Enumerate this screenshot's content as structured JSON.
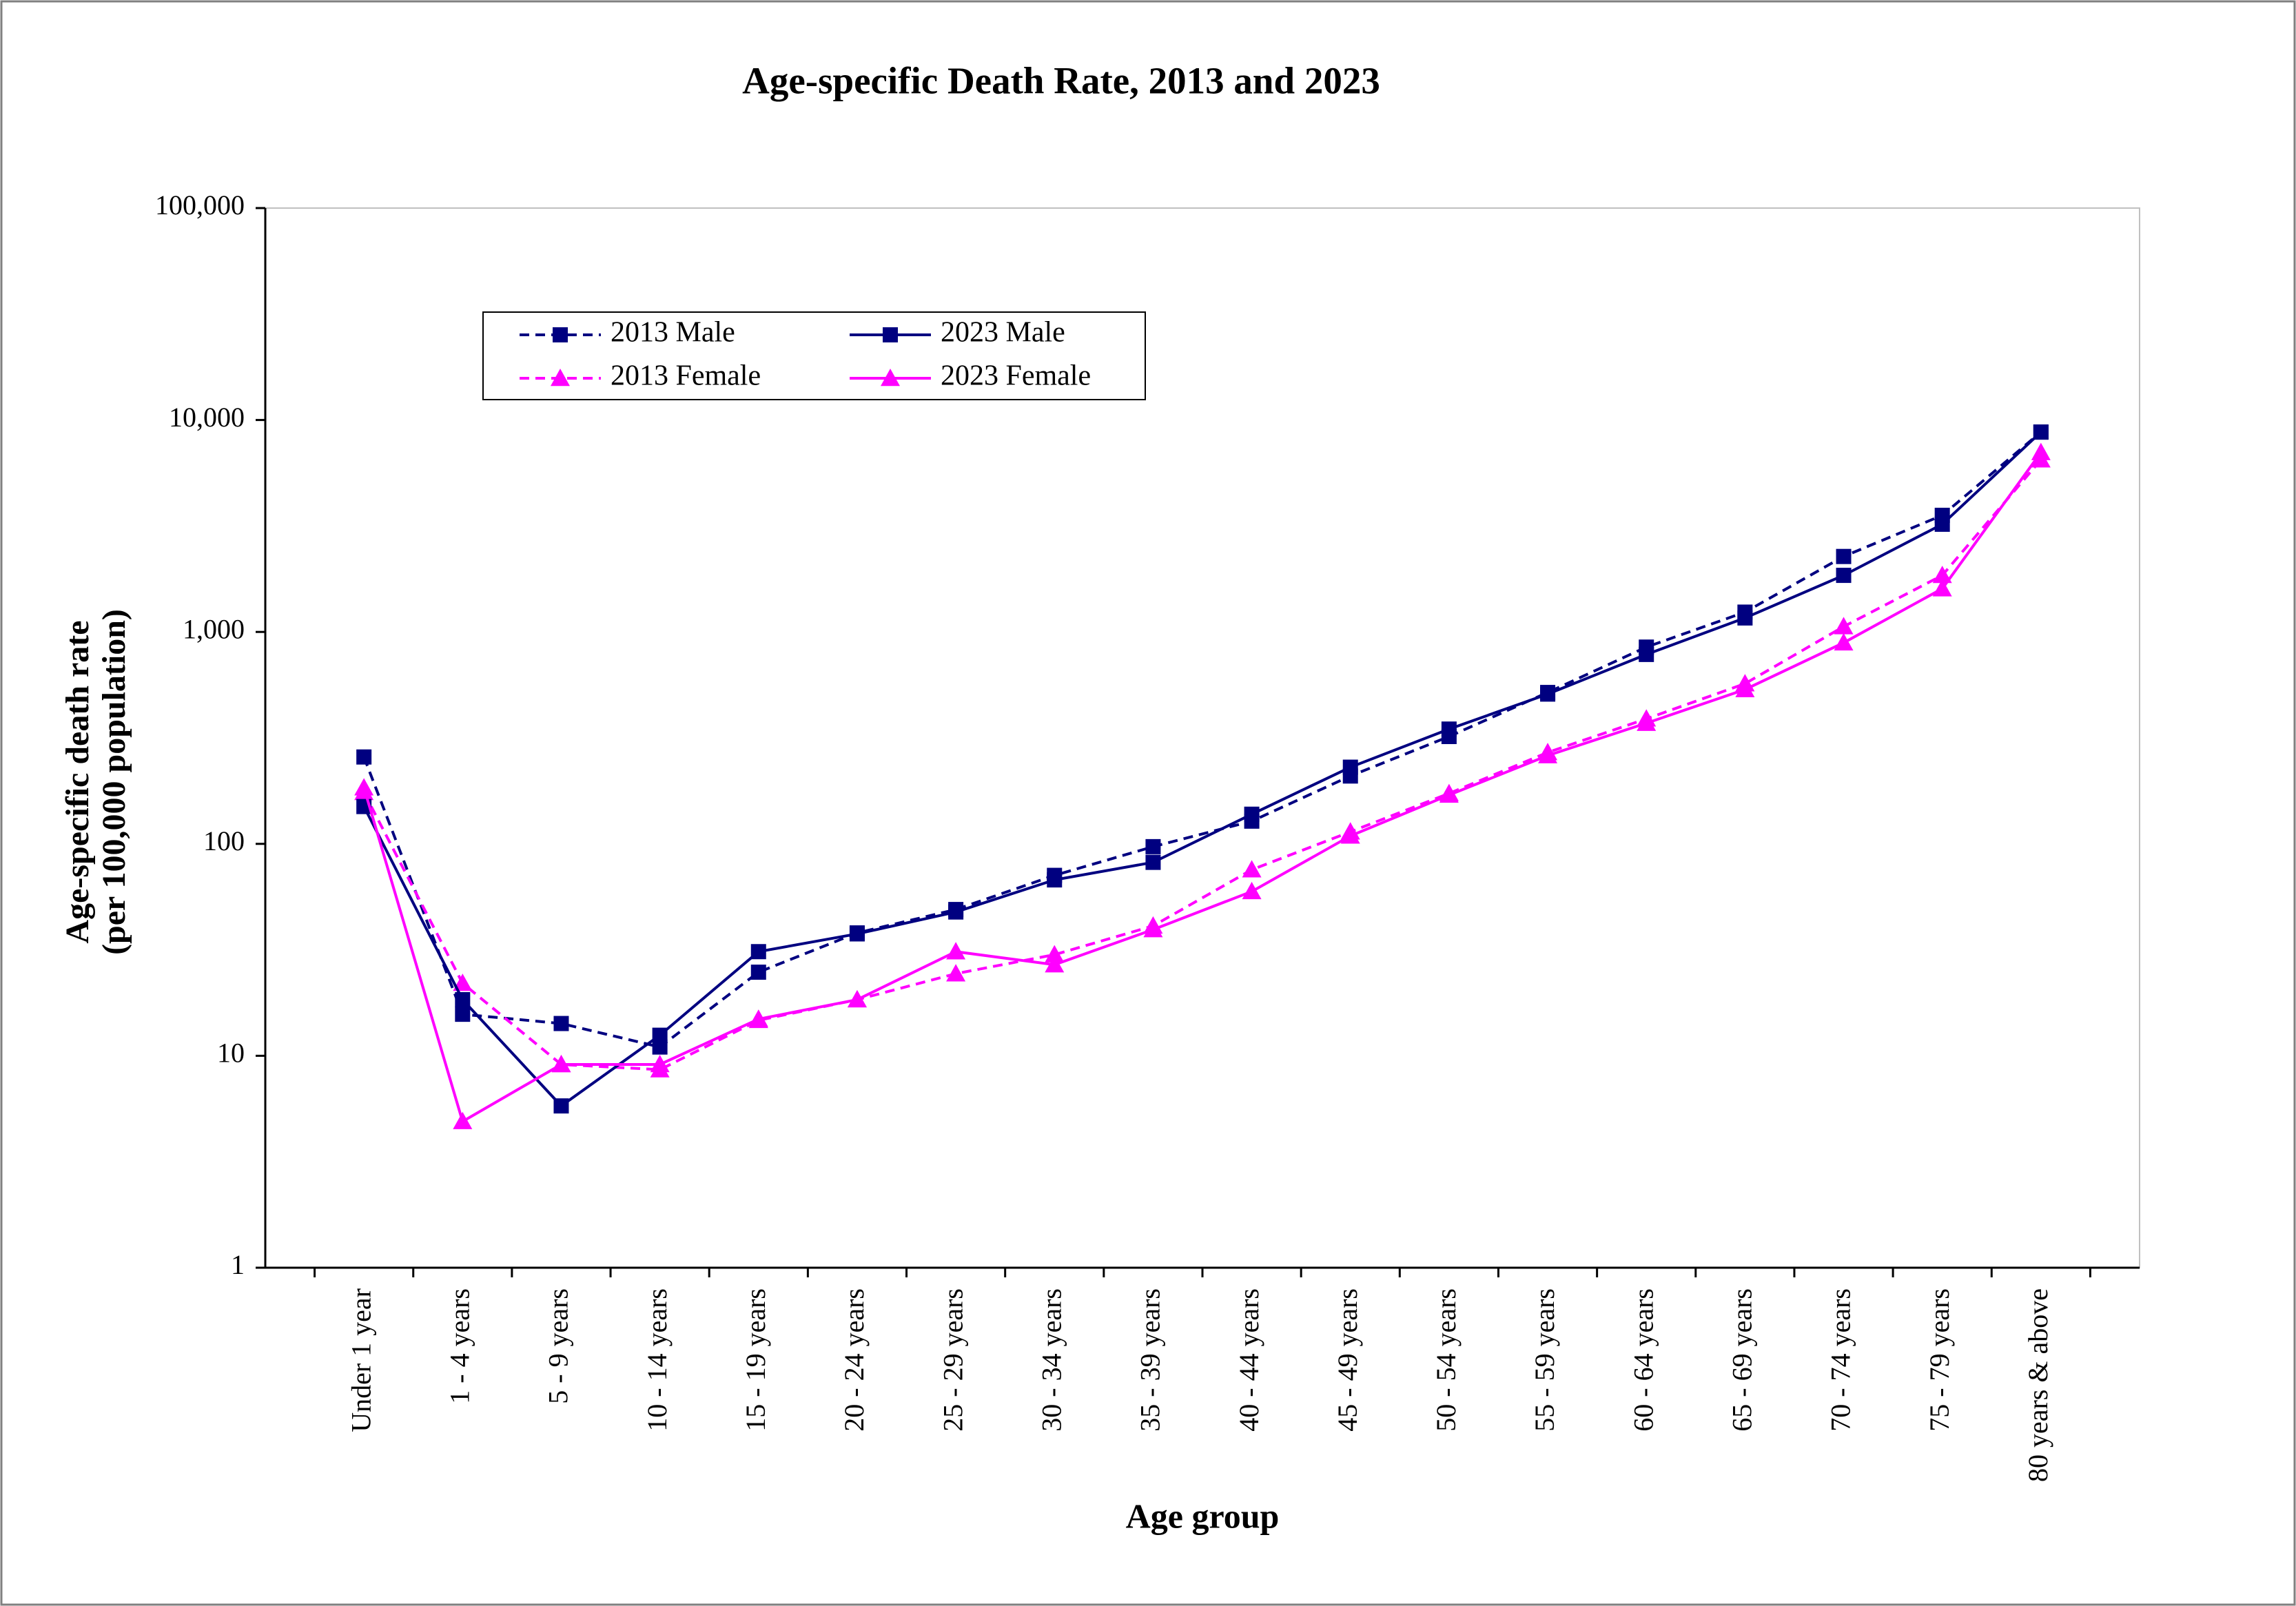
{
  "chart_data": {
    "type": "line",
    "title": "Age-specific Death Rate, 2013 and 2023",
    "x_label": "Age group",
    "y_label": [
      "Age-specific death rate",
      "(per 100,000 population)"
    ],
    "log_scale": true,
    "legend": "upper-left",
    "categories": [
      "Under 1 year",
      "1 - 4 years",
      "5 - 9 years",
      "10 - 14 years",
      "15 - 19 years",
      "20 - 24 years",
      "25 - 29 years",
      "30 - 34 years",
      "35 - 39 years",
      "40 - 44 years",
      "45 - 49 years",
      "50 - 54 years",
      "55 - 59 years",
      "60 - 64 years",
      "65 - 69 years",
      "70 - 74 years",
      "75 - 79 years",
      "80 years & above"
    ],
    "series": [
      {
        "name": "2013 Male",
        "color": "#000080",
        "line_style": "dashed",
        "marker": "square",
        "values": [
          257,
          15.7,
          14.2,
          11,
          24.8,
          38,
          49,
          71,
          97,
          128,
          209,
          321,
          518,
          848,
          1240,
          2270,
          3550,
          8770
        ]
      },
      {
        "name": "2013 Female",
        "color": "#ff00ff",
        "line_style": "dashed",
        "marker": "triangle",
        "values": [
          175,
          22,
          9.1,
          8.6,
          14.7,
          18.4,
          24.4,
          30,
          41,
          75.5,
          114,
          173,
          270,
          389,
          570,
          1060,
          1849,
          6490
        ]
      },
      {
        "name": "2023 Male",
        "color": "#000080",
        "line_style": "solid",
        "marker": "square",
        "values": [
          150,
          18.4,
          5.8,
          12.5,
          31,
          37.6,
          47.7,
          67.6,
          81.8,
          138,
          230,
          348,
          509,
          783,
          1164,
          1849,
          3222,
          8770
        ]
      },
      {
        "name": "2023 Female",
        "color": "#ff00ff",
        "line_style": "solid",
        "marker": "triangle",
        "values": [
          184,
          4.9,
          9.1,
          9.1,
          14.9,
          18.4,
          31,
          26.9,
          39.4,
          59.6,
          109,
          170,
          261,
          371,
          535,
          889,
          1600,
          7030
        ]
      }
    ],
    "ylim": [
      1,
      100000
    ],
    "yticks": [
      1,
      10,
      100,
      {
        "value": 1000,
        "label": "1,000"
      },
      {
        "value": 10000,
        "label": "10,000"
      },
      {
        "value": 100000,
        "label": "100,000"
      }
    ]
  }
}
